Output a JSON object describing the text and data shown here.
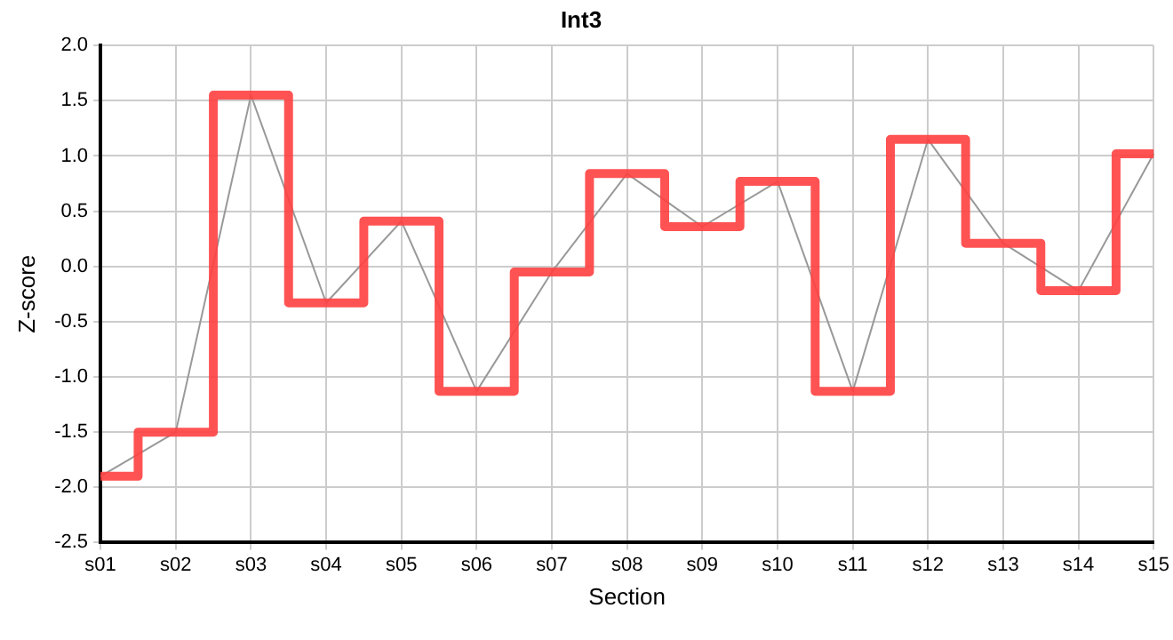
{
  "chart_data": {
    "type": "line",
    "title": "Int3",
    "xlabel": "Section",
    "ylabel": "Z-score",
    "categories": [
      "s01",
      "s02",
      "s03",
      "s04",
      "s05",
      "s06",
      "s07",
      "s08",
      "s09",
      "s10",
      "s11",
      "s12",
      "s13",
      "s14",
      "s15"
    ],
    "series": [
      {
        "type": "step",
        "color": "#ff4040",
        "values": [
          -1.9,
          -1.5,
          1.55,
          -0.33,
          0.41,
          -1.13,
          -0.05,
          0.84,
          0.36,
          0.77,
          -1.13,
          1.15,
          0.21,
          -0.22,
          1.02
        ]
      },
      {
        "type": "line",
        "color": "#999999",
        "values": [
          -1.9,
          -1.5,
          1.55,
          -0.33,
          0.41,
          -1.13,
          -0.05,
          0.84,
          0.36,
          0.77,
          -1.13,
          1.15,
          0.21,
          -0.22,
          1.02
        ]
      }
    ],
    "ylim": [
      -2.5,
      2.0
    ],
    "yticks": [
      -2.5,
      {
        "value": -2,
        "label": "-2.0"
      },
      -1.5,
      {
        "value": -1,
        "label": "-1.0"
      },
      -0.5,
      {
        "value": 0,
        "label": "0.0"
      },
      0.5,
      {
        "value": 1,
        "label": "1.0"
      },
      1.5,
      {
        "value": 2,
        "label": "2.0"
      }
    ],
    "grid": true,
    "legend": false,
    "marker": "none",
    "line_style": "solid"
  }
}
